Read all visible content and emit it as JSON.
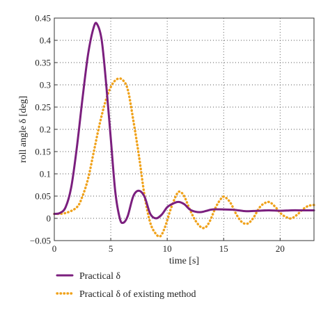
{
  "chart_data": {
    "type": "line",
    "title": "",
    "xlabel": "time [s]",
    "ylabel": "roll angle δ [deg]",
    "xlim": [
      0,
      23
    ],
    "ylim": [
      -0.05,
      0.45
    ],
    "xticks": [
      0,
      5,
      10,
      15,
      20
    ],
    "xtick_labels": [
      "0",
      "5",
      "10",
      "15",
      "20"
    ],
    "yticks": [
      -0.05,
      0,
      0.05,
      0.1,
      0.15,
      0.2,
      0.25,
      0.3,
      0.35,
      0.4,
      0.45
    ],
    "ytick_labels": [
      "−0.05",
      "0",
      "0.05",
      "0.1",
      "0.15",
      "0.2",
      "0.25",
      "0.3",
      "0.35",
      "0.4",
      "0.45"
    ],
    "grid": true,
    "legend_position": "bottom-left, below plot",
    "series": [
      {
        "name": "Practical δ",
        "color": "#7b1f7e",
        "style": "solid",
        "points": [
          [
            0,
            0.01
          ],
          [
            0.5,
            0.012
          ],
          [
            1,
            0.025
          ],
          [
            1.5,
            0.07
          ],
          [
            2,
            0.16
          ],
          [
            2.5,
            0.27
          ],
          [
            3,
            0.37
          ],
          [
            3.5,
            0.43
          ],
          [
            3.8,
            0.436
          ],
          [
            4.2,
            0.4
          ],
          [
            4.6,
            0.3
          ],
          [
            5,
            0.18
          ],
          [
            5.4,
            0.06
          ],
          [
            5.8,
            0.0
          ],
          [
            6.1,
            -0.01
          ],
          [
            6.5,
            0.005
          ],
          [
            7,
            0.05
          ],
          [
            7.5,
            0.062
          ],
          [
            8,
            0.048
          ],
          [
            8.5,
            0.01
          ],
          [
            9,
            0.0
          ],
          [
            9.5,
            0.008
          ],
          [
            10,
            0.025
          ],
          [
            10.5,
            0.033
          ],
          [
            11,
            0.037
          ],
          [
            11.5,
            0.032
          ],
          [
            12,
            0.02
          ],
          [
            12.5,
            0.015
          ],
          [
            13,
            0.014
          ],
          [
            13.5,
            0.017
          ],
          [
            14,
            0.02
          ],
          [
            15,
            0.02
          ],
          [
            16,
            0.019
          ],
          [
            17,
            0.016
          ],
          [
            18,
            0.017
          ],
          [
            19,
            0.018
          ],
          [
            20,
            0.017
          ],
          [
            21,
            0.018
          ],
          [
            22,
            0.018
          ],
          [
            23,
            0.018
          ]
        ]
      },
      {
        "name": "Practical δ of existing method",
        "color": "#f0a21b",
        "style": "dotted",
        "points": [
          [
            0,
            0.01
          ],
          [
            1,
            0.012
          ],
          [
            2,
            0.025
          ],
          [
            2.5,
            0.05
          ],
          [
            3,
            0.09
          ],
          [
            3.5,
            0.15
          ],
          [
            4,
            0.21
          ],
          [
            4.5,
            0.26
          ],
          [
            5,
            0.295
          ],
          [
            5.5,
            0.312
          ],
          [
            6,
            0.312
          ],
          [
            6.5,
            0.29
          ],
          [
            7,
            0.22
          ],
          [
            7.5,
            0.14
          ],
          [
            8,
            0.05
          ],
          [
            8.5,
            -0.01
          ],
          [
            9,
            -0.035
          ],
          [
            9.4,
            -0.04
          ],
          [
            9.8,
            -0.02
          ],
          [
            10.3,
            0.02
          ],
          [
            10.8,
            0.052
          ],
          [
            11.1,
            0.06
          ],
          [
            11.5,
            0.05
          ],
          [
            12,
            0.02
          ],
          [
            12.5,
            -0.005
          ],
          [
            13,
            -0.02
          ],
          [
            13.4,
            -0.02
          ],
          [
            13.8,
            -0.005
          ],
          [
            14.3,
            0.025
          ],
          [
            14.8,
            0.045
          ],
          [
            15.1,
            0.048
          ],
          [
            15.6,
            0.035
          ],
          [
            16.1,
            0.01
          ],
          [
            16.6,
            -0.008
          ],
          [
            17.1,
            -0.012
          ],
          [
            17.6,
            0.0
          ],
          [
            18.2,
            0.025
          ],
          [
            18.7,
            0.035
          ],
          [
            19.1,
            0.036
          ],
          [
            19.6,
            0.025
          ],
          [
            20.1,
            0.01
          ],
          [
            20.6,
            0.002
          ],
          [
            21,
            0.0
          ],
          [
            21.5,
            0.008
          ],
          [
            22,
            0.02
          ],
          [
            22.5,
            0.028
          ],
          [
            23,
            0.03
          ]
        ]
      }
    ]
  }
}
